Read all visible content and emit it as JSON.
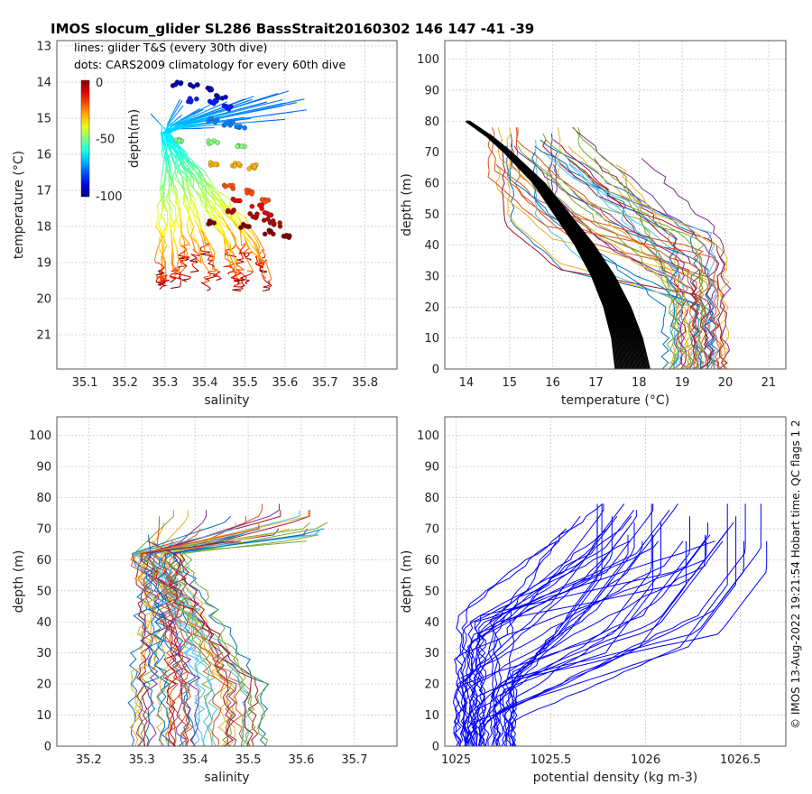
{
  "title": "IMOS slocum_glider SL286 BassStrait20160302 146  147  -41  -39",
  "side_text": "© IMOS 13-Aug-2022 19:21:54 Hobart time. QC flags 1  2",
  "chart_data": [
    {
      "id": "ts",
      "type": "scatter",
      "xlabel": "salinity",
      "ylabel": "temperature (°C)",
      "xlim": [
        35.03,
        35.88
      ],
      "ylim": [
        12.85,
        21.95
      ],
      "xticks": [
        35.1,
        35.2,
        35.3,
        35.4,
        35.5,
        35.6,
        35.7,
        35.8
      ],
      "yticks": [
        13,
        14,
        15,
        16,
        17,
        18,
        19,
        20,
        21
      ],
      "legend_lines": [
        "lines: glider T&S (every 30th dive)",
        "dots: CARS2009 climatology for every 60th dive"
      ],
      "colorbar": {
        "label": "depth(m)",
        "range": [
          -100,
          0
        ],
        "ticks": [
          "0",
          "-50",
          "-100"
        ]
      },
      "climatology_levels": [
        {
          "depth": 0,
          "points": [
            [
              35.42,
              17.9
            ],
            [
              35.5,
              18.0
            ],
            [
              35.56,
              18.15
            ],
            [
              35.6,
              18.3
            ]
          ]
        },
        {
          "depth": -5,
          "points": [
            [
              35.46,
              17.55
            ],
            [
              35.52,
              17.7
            ],
            [
              35.56,
              17.85
            ],
            [
              35.58,
              17.95
            ]
          ]
        },
        {
          "depth": -10,
          "points": [
            [
              35.48,
              17.25
            ],
            [
              35.53,
              17.45
            ],
            [
              35.56,
              17.65
            ]
          ]
        },
        {
          "depth": -20,
          "points": [
            [
              35.46,
              16.9
            ],
            [
              35.51,
              17.05
            ],
            [
              35.55,
              17.3
            ]
          ]
        },
        {
          "depth": -30,
          "points": [
            [
              35.42,
              16.25
            ],
            [
              35.48,
              16.3
            ],
            [
              35.52,
              16.35
            ]
          ]
        },
        {
          "depth": -50,
          "points": [
            [
              35.34,
              15.6
            ],
            [
              35.42,
              15.65
            ],
            [
              35.49,
              15.75
            ]
          ]
        },
        {
          "depth": -75,
          "points": [
            [
              35.42,
              15.05
            ],
            [
              35.46,
              15.15
            ],
            [
              35.49,
              15.25
            ]
          ]
        },
        {
          "depth": -85,
          "points": [
            [
              35.37,
              14.5
            ],
            [
              35.42,
              14.55
            ],
            [
              35.46,
              14.7
            ]
          ]
        },
        {
          "depth": -95,
          "points": [
            [
              35.33,
              14.05
            ],
            [
              35.37,
              14.1
            ],
            [
              35.41,
              14.2
            ],
            [
              35.44,
              14.4
            ]
          ]
        }
      ]
    },
    {
      "id": "temp",
      "type": "line",
      "xlabel": "temperature (°C)",
      "ylabel": "depth (m)",
      "xlim": [
        13.5,
        21.4
      ],
      "ylim": [
        106,
        0
      ],
      "xticks": [
        14,
        15,
        16,
        17,
        18,
        19,
        20,
        21
      ],
      "yticks": [
        0,
        10,
        20,
        30,
        40,
        50,
        60,
        70,
        80,
        90,
        100
      ],
      "series_note": "colored: glider temperature profiles; black: climatology profiles",
      "climatology_profile": {
        "depth": [
          0,
          10,
          20,
          30,
          40,
          50,
          60,
          70,
          75,
          80
        ],
        "temp": [
          17.6,
          17.5,
          17.3,
          17.0,
          16.6,
          16.1,
          15.6,
          14.9,
          14.5,
          14.0
        ]
      },
      "glider_profile_bands": {
        "surface_temp_range": [
          18.5,
          20.1
        ],
        "deep_temp_range": [
          14.2,
          16.8
        ],
        "thermocline_depth_range": [
          20,
          70
        ]
      }
    },
    {
      "id": "sal",
      "type": "line",
      "xlabel": "salinity",
      "ylabel": "depth (m)",
      "xlim": [
        35.14,
        35.78
      ],
      "ylim": [
        106,
        0
      ],
      "xticks": [
        35.2,
        35.3,
        35.4,
        35.5,
        35.6,
        35.7
      ],
      "yticks": [
        0,
        10,
        20,
        30,
        40,
        50,
        60,
        70,
        80,
        90,
        100
      ],
      "glider_profile_bands": {
        "surface_sal_range": [
          35.28,
          35.53
        ],
        "deep_sal_range": [
          35.25,
          35.65
        ],
        "max_depth": 80
      }
    },
    {
      "id": "dens",
      "type": "line",
      "xlabel": "potential density (kg m-3)",
      "ylabel": "depth (m)",
      "xlim": [
        1024.94,
        1026.74
      ],
      "ylim": [
        106,
        0
      ],
      "xticks": [
        1025,
        1025.5,
        1026,
        1026.5
      ],
      "xticklabels": [
        "1025",
        "1025.5",
        "1026",
        "1026.5"
      ],
      "yticks": [
        0,
        10,
        20,
        30,
        40,
        50,
        60,
        70,
        80,
        90,
        100
      ],
      "color": "#0000ff",
      "glider_profile_bands": {
        "surface_dens_range": [
          1025.0,
          1025.35
        ],
        "deep_dens_range": [
          1025.7,
          1026.7
        ],
        "max_depth": 80
      }
    }
  ]
}
